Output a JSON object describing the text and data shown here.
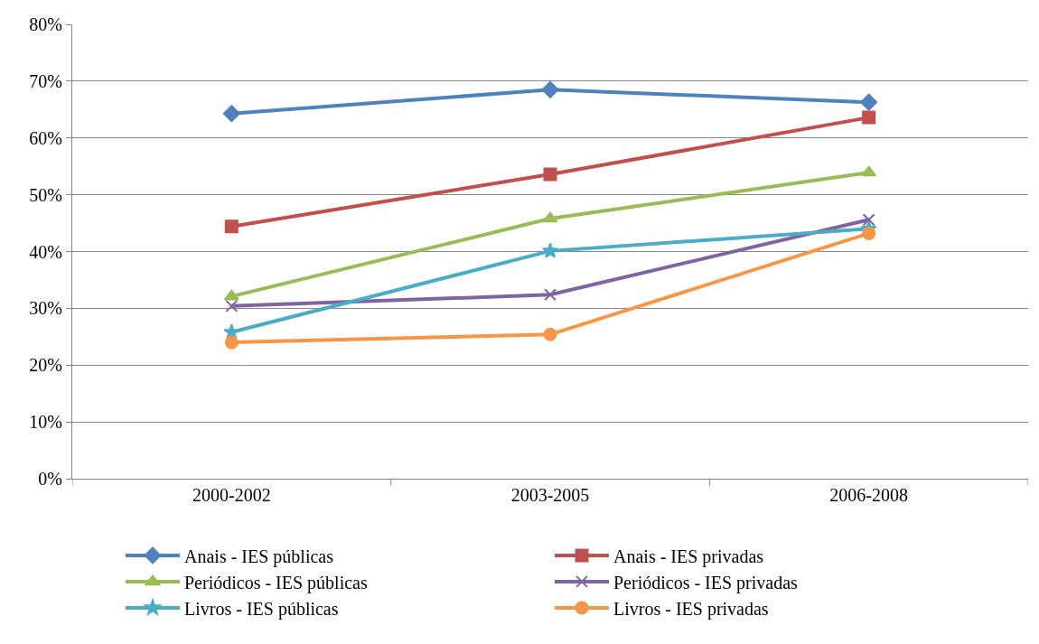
{
  "chart_data": {
    "type": "line",
    "categories": [
      "2000-2002",
      "2003-2005",
      "2006-2008"
    ],
    "ylim": [
      0,
      80
    ],
    "yticks": [
      {
        "value": 0,
        "label": "0%"
      },
      {
        "value": 10,
        "label": "10%"
      },
      {
        "value": 20,
        "label": "20%"
      },
      {
        "value": 30,
        "label": "30%"
      },
      {
        "value": 40,
        "label": "40%"
      },
      {
        "value": 50,
        "label": "50%"
      },
      {
        "value": 60,
        "label": "60%"
      },
      {
        "value": 70,
        "label": "70%"
      },
      {
        "value": 80,
        "label": "80%"
      }
    ],
    "grid": "y",
    "legend": "bottom",
    "line_style": "solid",
    "series": [
      {
        "name": "Anais - IES públicas",
        "color": "#4f81bd",
        "marker": "diamond",
        "values": [
          64.3,
          68.5,
          66.3
        ]
      },
      {
        "name": "Anais - IES privadas",
        "color": "#c0504d",
        "marker": "square",
        "values": [
          44.4,
          53.6,
          63.6
        ]
      },
      {
        "name": "Periódicos - IES públicas",
        "color": "#9bbb59",
        "marker": "triangle",
        "values": [
          32.1,
          45.8,
          53.9
        ]
      },
      {
        "name": "Periódicos - IES privadas",
        "color": "#8064a2",
        "marker": "cross",
        "values": [
          30.4,
          32.4,
          45.6
        ]
      },
      {
        "name": "Livros - IES públicas",
        "color": "#4bacc6",
        "marker": "star",
        "values": [
          25.8,
          40.1,
          44.0
        ]
      },
      {
        "name": "Livros - IES privadas",
        "color": "#f79646",
        "marker": "circle",
        "values": [
          24.0,
          25.4,
          43.2
        ]
      }
    ]
  }
}
